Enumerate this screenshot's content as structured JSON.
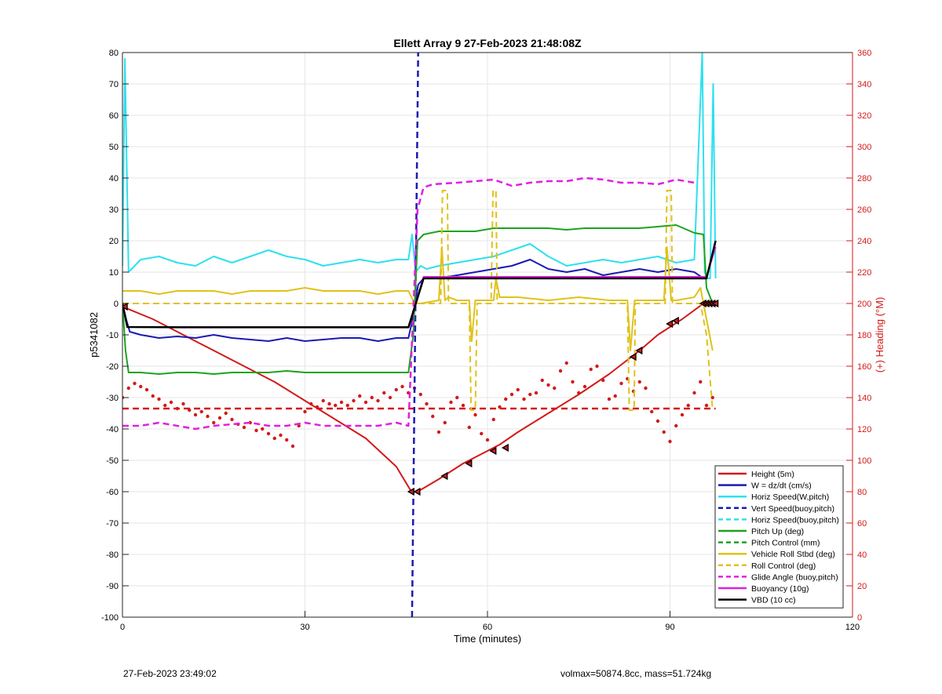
{
  "chart_data": {
    "type": "line",
    "title": "Ellett Array 9 27-Feb-2023 21:48:08Z",
    "xlabel": "Time (minutes)",
    "ylabel": "p5341082",
    "y2label": "(+) Heading (°M)",
    "xlim": [
      0,
      120
    ],
    "ylim": [
      -100,
      80
    ],
    "y2lim": [
      0,
      360
    ],
    "xticks": [
      0,
      30,
      60,
      90,
      120
    ],
    "yticks": [
      -100,
      -90,
      -80,
      -70,
      -60,
      -50,
      -40,
      -30,
      -20,
      -10,
      0,
      10,
      20,
      30,
      40,
      50,
      60,
      70,
      80
    ],
    "y2ticks": [
      0,
      20,
      40,
      60,
      80,
      100,
      120,
      140,
      160,
      180,
      200,
      220,
      240,
      260,
      280,
      300,
      320,
      340,
      360
    ],
    "grid": true,
    "legend_position": "bottom-right",
    "series": [
      {
        "name": "Height (5m)",
        "color": "#d21a1a",
        "style": "solid",
        "width": 2,
        "x": [
          0,
          5,
          10,
          15,
          20,
          25,
          30,
          35,
          40,
          45,
          47.5,
          48.5,
          52,
          56,
          59,
          62,
          65,
          70,
          75,
          80,
          85,
          88,
          92,
          95.5
        ],
        "y": [
          -1,
          -5,
          -10,
          -15,
          -20,
          -25,
          -31,
          -37,
          -43,
          -52,
          -60,
          -60,
          -56,
          -51,
          -48,
          -45,
          -41,
          -35,
          -29,
          -22.5,
          -15,
          -10,
          -5,
          0
        ]
      },
      {
        "name": "W = dz/dt (cm/s)",
        "color": "#1a1ab4",
        "style": "solid",
        "width": 2,
        "x": [
          0,
          0.6,
          1.2,
          3,
          6,
          9,
          12,
          15,
          18,
          21,
          24,
          27,
          30,
          33,
          36,
          39,
          42,
          45,
          47,
          47.8,
          48.6,
          49.5,
          52,
          55,
          58,
          61,
          64,
          67,
          70,
          73,
          76,
          79,
          82,
          85,
          88,
          91,
          94,
          95.5
        ],
        "y": [
          0,
          -5,
          -9,
          -10,
          -11,
          -10.5,
          -11,
          -10,
          -11,
          -11.5,
          -12,
          -11,
          -12,
          -11.5,
          -11,
          -11,
          -12,
          -11,
          -11,
          -4,
          6,
          8,
          8,
          9,
          10,
          11,
          12,
          14,
          11,
          10,
          11,
          9,
          10,
          11,
          10,
          11,
          10,
          8
        ]
      },
      {
        "name": "Horiz Speed(W,pitch)",
        "color": "#2ee0ee",
        "style": "solid",
        "width": 2,
        "x": [
          0,
          0.4,
          1,
          3,
          6,
          9,
          12,
          15,
          18,
          21,
          24,
          27,
          30,
          33,
          36,
          39,
          42,
          45,
          47,
          47.6,
          48.2,
          49,
          50,
          52,
          55,
          58,
          61,
          64,
          67,
          70,
          73,
          76,
          79,
          82,
          85,
          88,
          91,
          94,
          95.3,
          95.7,
          96.1,
          96.6,
          97.1,
          97.5
        ],
        "y": [
          12,
          78,
          10,
          14,
          15,
          13,
          12,
          15,
          13,
          15,
          17,
          15,
          14,
          12,
          13,
          14,
          13,
          14,
          14,
          22,
          10,
          12,
          11,
          12,
          13,
          14,
          15,
          17,
          19,
          15,
          12,
          13,
          14,
          13,
          14,
          15,
          13,
          14,
          80,
          10,
          8,
          8,
          70,
          8
        ]
      },
      {
        "name": "Vert Speed(buoy,pitch)",
        "color": "#1a1ab4",
        "style": "dashed",
        "width": 2.5,
        "x": [
          47.6,
          48.6
        ],
        "y": [
          -100,
          80
        ]
      },
      {
        "name": "Horiz Speed(buoy,pitch)",
        "color": "#2ee0ee",
        "style": "dashed",
        "width": 2,
        "x": [],
        "y": []
      },
      {
        "name": "Pitch Up (deg)",
        "color": "#1da31d",
        "style": "solid",
        "width": 2,
        "x": [
          0,
          0.5,
          1,
          3,
          6,
          9,
          12,
          15,
          18,
          21,
          24,
          27,
          30,
          33,
          36,
          39,
          42,
          45,
          47,
          47.8,
          48.5,
          49.5,
          52,
          55,
          58,
          61,
          64,
          67,
          70,
          73,
          76,
          79,
          82,
          85,
          88,
          91,
          94,
          95.5,
          96,
          97
        ],
        "y": [
          0,
          -15,
          -22,
          -22,
          -22.5,
          -22,
          -22,
          -22.5,
          -22,
          -22,
          -22,
          -21.5,
          -22,
          -22,
          -22,
          -22,
          -22,
          -22,
          -22,
          -10,
          20,
          22,
          23,
          23,
          23,
          24,
          24,
          24,
          24,
          23.5,
          24,
          24,
          24,
          24,
          24.5,
          25,
          22.5,
          22,
          5,
          0
        ]
      },
      {
        "name": "Pitch Control (mm)",
        "color": "#1da31d",
        "style": "dashed",
        "width": 2,
        "x": [],
        "y": []
      },
      {
        "name": "Vehicle Roll Stbd (deg)",
        "color": "#e0c21a",
        "style": "solid",
        "width": 2,
        "x": [
          0,
          3,
          6,
          9,
          12,
          15,
          18,
          21,
          24,
          27,
          30,
          33,
          36,
          39,
          42,
          45,
          47,
          48,
          49,
          52,
          52.5,
          53,
          53.6,
          55,
          57,
          57.4,
          58,
          60,
          61,
          61.4,
          62,
          65,
          70,
          75,
          80,
          83,
          83.5,
          84.2,
          85,
          89,
          89.5,
          90.2,
          91,
          94,
          95,
          96,
          97
        ],
        "y": [
          4,
          4,
          3,
          4,
          4,
          4,
          3,
          4,
          4,
          4,
          5,
          4,
          4,
          4,
          3,
          4,
          4,
          0,
          0,
          1,
          18,
          1,
          2,
          1,
          1,
          -12,
          1,
          1,
          1,
          8,
          2,
          2,
          1,
          2,
          1,
          1,
          -15,
          1,
          1,
          1,
          18,
          1,
          1,
          2,
          5,
          -5,
          -15
        ]
      },
      {
        "name": "Roll Control (deg)",
        "color": "#e0c21a",
        "style": "dashed",
        "width": 2,
        "x": [
          0,
          52.3,
          52.6,
          53.4,
          53.6,
          57,
          57.3,
          58.0,
          58.3,
          60.6,
          60.9,
          61.4,
          61.6,
          83,
          83.3,
          84.1,
          84.3,
          89.2,
          89.5,
          90.2,
          90.4,
          95,
          96,
          97
        ],
        "y": [
          0,
          0,
          36,
          36,
          0,
          0,
          -34,
          -34,
          0,
          0,
          36,
          36,
          0,
          0,
          -34,
          -34,
          0,
          0,
          36,
          36,
          0,
          0,
          -10,
          -34
        ]
      },
      {
        "name": "Glide Angle (buoy,pitch)",
        "color": "#e020e0",
        "style": "dashed",
        "width": 2.5,
        "x": [
          0,
          3,
          6,
          9,
          12,
          15,
          18,
          21,
          24,
          27,
          30,
          33,
          36,
          39,
          42,
          45,
          47,
          48.5,
          49.5,
          51,
          55,
          58,
          61,
          64,
          67,
          70,
          73,
          76,
          79,
          82,
          85,
          88,
          91,
          94
        ],
        "y": [
          -39,
          -39,
          -38,
          -39,
          -40,
          -39,
          -38.5,
          -38,
          -39,
          -39,
          -38,
          -39,
          -39,
          -39,
          -39,
          -38,
          -39,
          30,
          37,
          38,
          38.5,
          39,
          39.5,
          37.5,
          38.5,
          39,
          39,
          40,
          39.5,
          38.5,
          38.5,
          38,
          39.5,
          38.5
        ]
      },
      {
        "name": "Buoyancy (10g)",
        "color": "#e020e0",
        "style": "solid",
        "width": 2,
        "x": [
          0,
          0.8,
          47,
          49.5,
          96,
          97.5
        ],
        "y": [
          0,
          -7.5,
          -7.5,
          8.5,
          8.5,
          18
        ]
      },
      {
        "name": "VBD (10 cc)",
        "color": "#000000",
        "style": "solid",
        "width": 2.5,
        "x": [
          0,
          0.8,
          10,
          47,
          49.5,
          60,
          96,
          97.5
        ],
        "y": [
          0,
          -7.5,
          -7.6,
          -7.6,
          8,
          8,
          8,
          20
        ]
      }
    ],
    "heading_series": {
      "color": "#d21a1a",
      "style": "dots",
      "axis": "right",
      "x": [
        0,
        1,
        2,
        3,
        4,
        5,
        6,
        7,
        8,
        9,
        10,
        11,
        12,
        13,
        14,
        15,
        16,
        17,
        18,
        19,
        20,
        21,
        22,
        23,
        24,
        25,
        26,
        27,
        28,
        29,
        30,
        31,
        32,
        33,
        34,
        35,
        36,
        37,
        38,
        39,
        40,
        41,
        42,
        43,
        44,
        45,
        46,
        47,
        48,
        49,
        50,
        51,
        52,
        53,
        54,
        55,
        56,
        57,
        58,
        59,
        60,
        61,
        62,
        63,
        64,
        65,
        66,
        67,
        68,
        69,
        70,
        71,
        72,
        73,
        74,
        75,
        76,
        77,
        78,
        79,
        80,
        81,
        82,
        83,
        84,
        85,
        86,
        87,
        88,
        89,
        90,
        91,
        92,
        93,
        94,
        95,
        96,
        97
      ],
      "y": [
        140,
        146,
        149,
        147,
        145,
        141,
        139,
        135,
        137,
        133,
        136,
        132,
        129,
        131,
        128,
        124,
        127,
        130,
        126,
        123,
        121,
        124,
        119,
        120,
        117,
        114,
        116,
        113,
        109,
        122,
        131,
        136,
        134,
        138,
        136,
        135,
        137,
        135,
        138,
        141,
        137,
        140,
        138,
        143,
        140,
        145,
        147,
        143,
        146,
        142,
        136,
        128,
        118,
        124,
        137,
        140,
        135,
        121,
        129,
        117,
        113,
        126,
        134,
        139,
        142,
        145,
        139,
        142,
        143,
        151,
        148,
        146,
        157,
        162,
        150,
        143,
        147,
        158,
        160,
        151,
        139,
        141,
        149,
        152,
        144,
        150,
        146,
        131,
        125,
        118,
        112,
        122,
        129,
        135,
        143,
        150,
        135,
        140
      ]
    },
    "markers": {
      "color": "#000000",
      "x": [
        0.4,
        47.5,
        48.5,
        53,
        57,
        61,
        63,
        84,
        85,
        90,
        91,
        95.5,
        96,
        96.5,
        97,
        97.5
      ],
      "y": [
        -1,
        -60,
        -60,
        -55,
        -51,
        -47,
        -46,
        -17,
        -15,
        -6.5,
        -5.5,
        0,
        0,
        0,
        0,
        0
      ]
    }
  },
  "footer": {
    "left": "27-Feb-2023 23:49:02",
    "right": "volmax=50874.8cc, mass=51.724kg"
  }
}
